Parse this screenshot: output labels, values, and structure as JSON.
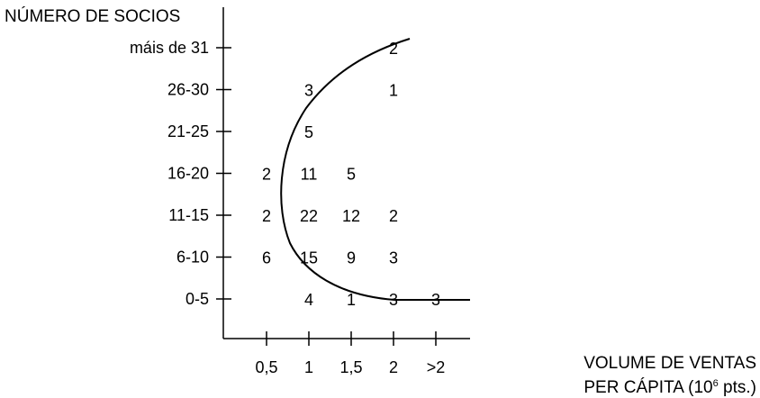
{
  "chart_data": {
    "type": "table",
    "title": "",
    "ylabel": "NÚMERO DE SOCIOS",
    "xlabel": {
      "line1": "VOLUME DE VENTAS",
      "line2_prefix": "PER CÁPITA (10",
      "line2_sup": "6",
      "line2_suffix": " pts.)"
    },
    "x_categories": [
      "0,5",
      "1",
      "1,5",
      "2",
      ">2"
    ],
    "y_categories": [
      "0-5",
      "6-10",
      "11-15",
      "16-20",
      "21-25",
      "26-30",
      "máis de 31"
    ],
    "cells": [
      {
        "x": "1",
        "y": "0-5",
        "value": "4"
      },
      {
        "x": "1,5",
        "y": "0-5",
        "value": "1"
      },
      {
        "x": "2",
        "y": "0-5",
        "value": "3"
      },
      {
        "x": ">2",
        "y": "0-5",
        "value": "3"
      },
      {
        "x": "0,5",
        "y": "6-10",
        "value": "6"
      },
      {
        "x": "1",
        "y": "6-10",
        "value": "15"
      },
      {
        "x": "1,5",
        "y": "6-10",
        "value": "9"
      },
      {
        "x": "2",
        "y": "6-10",
        "value": "3"
      },
      {
        "x": "0,5",
        "y": "11-15",
        "value": "2"
      },
      {
        "x": "1",
        "y": "11-15",
        "value": "22"
      },
      {
        "x": "1,5",
        "y": "11-15",
        "value": "12"
      },
      {
        "x": "2",
        "y": "11-15",
        "value": "2"
      },
      {
        "x": "0,5",
        "y": "16-20",
        "value": "2"
      },
      {
        "x": "1",
        "y": "16-20",
        "value": "11"
      },
      {
        "x": "1,5",
        "y": "16-20",
        "value": "5"
      },
      {
        "x": "1",
        "y": "21-25",
        "value": "5"
      },
      {
        "x": "1",
        "y": "26-30",
        "value": "3"
      },
      {
        "x": "2",
        "y": "26-30",
        "value": "1"
      },
      {
        "x": "2",
        "y": "máis de 31",
        "value": "2"
      }
    ],
    "grid": false,
    "curve_color": "#000000"
  }
}
